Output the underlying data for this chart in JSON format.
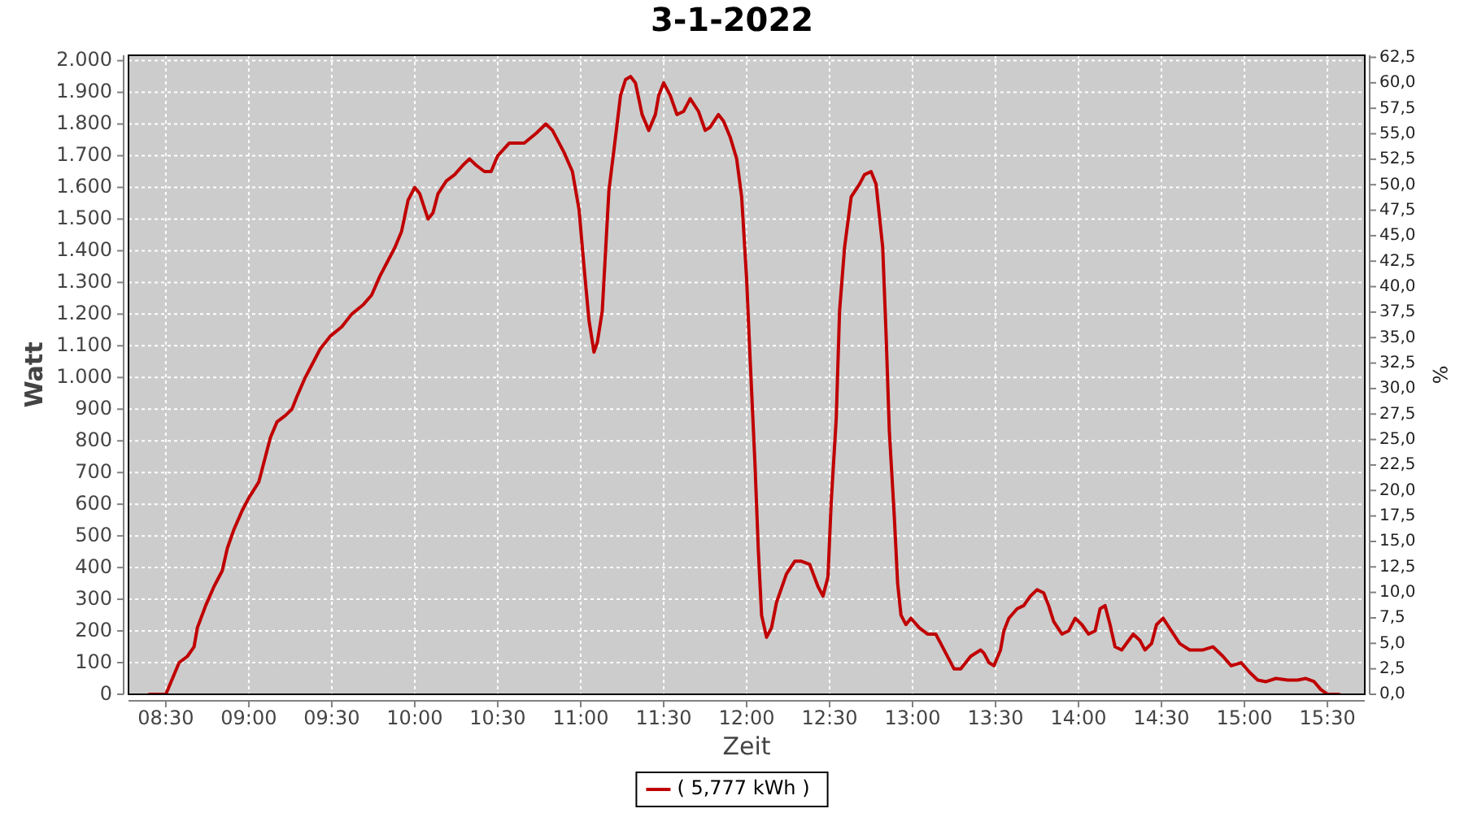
{
  "chart_data": {
    "type": "line",
    "title": "3-1-2022",
    "xlabel": "Zeit",
    "ylabel": "Watt",
    "y2label": "%",
    "x": [
      8.4,
      8.5,
      8.58,
      8.63,
      8.67,
      8.69,
      8.74,
      8.79,
      8.84,
      8.87,
      8.91,
      8.96,
      9.0,
      9.06,
      9.1,
      9.13,
      9.17,
      9.22,
      9.26,
      9.29,
      9.34,
      9.38,
      9.43,
      9.49,
      9.56,
      9.62,
      9.69,
      9.74,
      9.79,
      9.83,
      9.88,
      9.92,
      9.96,
      10.0,
      10.03,
      10.08,
      10.11,
      10.14,
      10.19,
      10.24,
      10.29,
      10.33,
      10.37,
      10.42,
      10.46,
      10.5,
      10.57,
      10.66,
      10.73,
      10.79,
      10.83,
      10.9,
      10.95,
      10.99,
      11.02,
      11.05,
      11.08,
      11.1,
      11.13,
      11.15,
      11.17,
      11.21,
      11.24,
      11.27,
      11.3,
      11.33,
      11.37,
      11.41,
      11.45,
      11.47,
      11.5,
      11.54,
      11.58,
      11.62,
      11.66,
      11.71,
      11.75,
      11.78,
      11.83,
      11.86,
      11.9,
      11.94,
      11.97,
      12.0,
      12.02,
      12.05,
      12.07,
      12.09,
      12.12,
      12.15,
      12.18,
      12.24,
      12.29,
      12.33,
      12.38,
      12.43,
      12.46,
      12.49,
      12.51,
      12.54,
      12.56,
      12.59,
      12.63,
      12.68,
      12.71,
      12.75,
      12.78,
      12.82,
      12.84,
      12.86,
      12.89,
      12.91,
      12.93,
      12.96,
      12.99,
      13.04,
      13.09,
      13.14,
      13.2,
      13.25,
      13.29,
      13.35,
      13.41,
      13.43,
      13.46,
      13.49,
      13.53,
      13.55,
      13.58,
      13.63,
      13.67,
      13.71,
      13.75,
      13.79,
      13.82,
      13.85,
      13.9,
      13.94,
      13.98,
      14.02,
      14.06,
      14.1,
      14.13,
      14.16,
      14.19,
      14.22,
      14.26,
      14.33,
      14.37,
      14.4,
      14.44,
      14.47,
      14.51,
      14.56,
      14.61,
      14.67,
      14.75,
      14.81,
      14.87,
      14.92,
      14.98,
      15.03,
      15.08,
      15.13,
      15.19,
      15.26,
      15.32,
      15.37,
      15.42,
      15.46,
      15.5,
      15.57
    ],
    "series": [
      {
        "name": "( 5,777 kWh )",
        "color": "#c00000",
        "values": [
          0,
          0,
          100,
          120,
          150,
          210,
          280,
          340,
          390,
          460,
          520,
          580,
          620,
          670,
          750,
          810,
          860,
          880,
          900,
          940,
          1000,
          1040,
          1090,
          1130,
          1160,
          1200,
          1230,
          1260,
          1320,
          1360,
          1410,
          1460,
          1560,
          1600,
          1580,
          1500,
          1520,
          1580,
          1620,
          1640,
          1670,
          1690,
          1670,
          1650,
          1650,
          1700,
          1740,
          1740,
          1770,
          1800,
          1780,
          1710,
          1650,
          1530,
          1350,
          1180,
          1080,
          1110,
          1210,
          1400,
          1590,
          1760,
          1890,
          1940,
          1950,
          1930,
          1830,
          1780,
          1830,
          1890,
          1930,
          1890,
          1830,
          1840,
          1880,
          1840,
          1780,
          1790,
          1830,
          1810,
          1760,
          1690,
          1570,
          1310,
          1070,
          730,
          460,
          250,
          180,
          210,
          290,
          380,
          420,
          420,
          410,
          340,
          310,
          370,
          610,
          870,
          1210,
          1410,
          1570,
          1610,
          1640,
          1650,
          1610,
          1410,
          1140,
          830,
          560,
          350,
          250,
          220,
          240,
          210,
          190,
          190,
          130,
          80,
          80,
          120,
          140,
          130,
          100,
          90,
          140,
          200,
          240,
          270,
          280,
          310,
          330,
          320,
          280,
          230,
          190,
          200,
          240,
          220,
          190,
          200,
          270,
          280,
          220,
          150,
          140,
          190,
          170,
          140,
          160,
          220,
          240,
          200,
          160,
          140,
          140,
          150,
          120,
          90,
          100,
          70,
          45,
          40,
          50,
          45,
          45,
          50,
          40,
          15,
          0,
          0
        ]
      }
    ],
    "xlim": [
      8.275,
      15.725
    ],
    "xticks": [
      {
        "value": 8.5,
        "label": "08:30"
      },
      {
        "value": 9,
        "label": "09:00"
      },
      {
        "value": 9.5,
        "label": "09:30"
      },
      {
        "value": 10,
        "label": "10:00"
      },
      {
        "value": 10.5,
        "label": "10:30"
      },
      {
        "value": 11,
        "label": "11:00"
      },
      {
        "value": 11.5,
        "label": "11:30"
      },
      {
        "value": 12,
        "label": "12:00"
      },
      {
        "value": 12.5,
        "label": "12:30"
      },
      {
        "value": 13,
        "label": "13:00"
      },
      {
        "value": 13.5,
        "label": "13:30"
      },
      {
        "value": 14,
        "label": "14:00"
      },
      {
        "value": 14.5,
        "label": "14:30"
      },
      {
        "value": 15,
        "label": "15:00"
      },
      {
        "value": 15.5,
        "label": "15:30"
      }
    ],
    "ylim": [
      0,
      2017
    ],
    "yticks": [
      0,
      100,
      200,
      300,
      400,
      500,
      600,
      700,
      800,
      900,
      {
        "value": 1000,
        "label": "1.000"
      },
      {
        "value": 1100,
        "label": "1.100"
      },
      {
        "value": 1200,
        "label": "1.200"
      },
      {
        "value": 1300,
        "label": "1.300"
      },
      {
        "value": 1400,
        "label": "1.400"
      },
      {
        "value": 1500,
        "label": "1.500"
      },
      {
        "value": 1600,
        "label": "1.600"
      },
      {
        "value": 1700,
        "label": "1.700"
      },
      {
        "value": 1800,
        "label": "1.800"
      },
      {
        "value": 1900,
        "label": "1.900"
      },
      {
        "value": 2000,
        "label": "2.000"
      }
    ],
    "y2lim": [
      0,
      62.7
    ],
    "y2ticks": [
      {
        "value": 0,
        "label": "0,0"
      },
      {
        "value": 2.5,
        "label": "2,5"
      },
      {
        "value": 5,
        "label": "5,0"
      },
      {
        "value": 7.5,
        "label": "7,5"
      },
      {
        "value": 10,
        "label": "10,0"
      },
      {
        "value": 12.5,
        "label": "12,5"
      },
      {
        "value": 15,
        "label": "15,0"
      },
      {
        "value": 17.5,
        "label": "17,5"
      },
      {
        "value": 20,
        "label": "20,0"
      },
      {
        "value": 22.5,
        "label": "22,5"
      },
      {
        "value": 25,
        "label": "25,0"
      },
      {
        "value": 27.5,
        "label": "27,5"
      },
      {
        "value": 30,
        "label": "30,0"
      },
      {
        "value": 32.5,
        "label": "32,5"
      },
      {
        "value": 35,
        "label": "35,0"
      },
      {
        "value": 37.5,
        "label": "37,5"
      },
      {
        "value": 40,
        "label": "40,0"
      },
      {
        "value": 42.5,
        "label": "42,5"
      },
      {
        "value": 45,
        "label": "45,0"
      },
      {
        "value": 47.5,
        "label": "47,5"
      },
      {
        "value": 50,
        "label": "50,0"
      },
      {
        "value": 52.5,
        "label": "52,5"
      },
      {
        "value": 55,
        "label": "55,0"
      },
      {
        "value": 57.5,
        "label": "57,5"
      },
      {
        "value": 60,
        "label": "60,0"
      },
      {
        "value": 62.5,
        "label": "62,5"
      }
    ],
    "grid": true,
    "legend": "bottom"
  }
}
